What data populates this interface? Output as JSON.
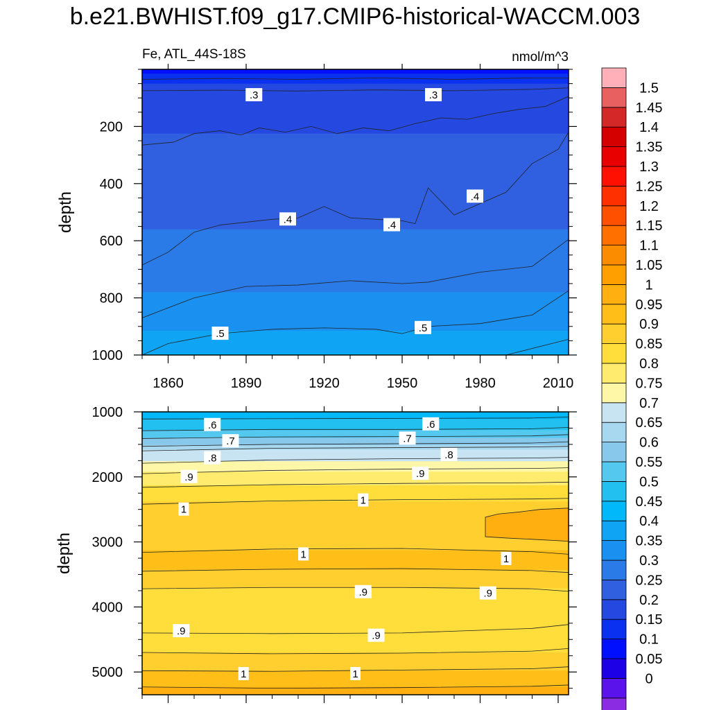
{
  "figure": {
    "title": "b.e21.BWHIST.f09_g17.CMIP6-historical-WACCM.003",
    "variable_label": "Fe, ATL_44S-18S",
    "units": "nmol/m^3"
  },
  "chart_data": [
    {
      "type": "heatmap",
      "panel": "upper",
      "variable": "Fe",
      "region": "ATL_44S-18S",
      "units": "nmol/m^3",
      "xlabel": "",
      "ylabel": "depth",
      "xlim": [
        1850,
        2014
      ],
      "ylim": [
        1000,
        0
      ],
      "xticks": [
        1860,
        1890,
        1920,
        1950,
        1980,
        2010
      ],
      "yticks": [
        200,
        400,
        600,
        800,
        1000
      ],
      "contour_interval": 0.05,
      "contour_labels": [
        {
          "text": ".3",
          "x": 1893,
          "y": 90
        },
        {
          "text": ".3",
          "x": 1962,
          "y": 90
        },
        {
          "text": ".4",
          "x": 1906,
          "y": 525
        },
        {
          "text": ".4",
          "x": 1946,
          "y": 545
        },
        {
          "text": ".4",
          "x": 1978,
          "y": 445
        },
        {
          "text": ".5",
          "x": 1880,
          "y": 925
        },
        {
          "text": ".5",
          "x": 1958,
          "y": 905
        }
      ],
      "isolines": [
        {
          "level": 0.2,
          "x": [
            1850,
            1880,
            1910,
            1940,
            1970,
            2000,
            2014
          ],
          "y": [
            35,
            32,
            35,
            30,
            35,
            30,
            30
          ]
        },
        {
          "level": 0.25,
          "x": [
            1850,
            1880,
            1910,
            1940,
            1970,
            2000,
            2014
          ],
          "y": [
            75,
            73,
            76,
            72,
            75,
            70,
            65
          ]
        },
        {
          "level": 0.3,
          "x": [
            1850,
            1862,
            1870,
            1880,
            1888,
            1895,
            1905,
            1915,
            1925,
            1935,
            1945,
            1955,
            1965,
            1975,
            1985,
            1995,
            2005,
            2014
          ],
          "y": [
            265,
            255,
            225,
            215,
            230,
            205,
            220,
            200,
            225,
            205,
            215,
            190,
            170,
            175,
            155,
            140,
            130,
            95
          ]
        },
        {
          "level": 0.35,
          "x": [
            1850,
            1860,
            1870,
            1880,
            1890,
            1900,
            1910,
            1920,
            1930,
            1940,
            1950,
            1955,
            1960,
            1970,
            1980,
            1990,
            2000,
            2010,
            2014
          ],
          "y": [
            685,
            640,
            570,
            545,
            535,
            525,
            520,
            480,
            520,
            525,
            530,
            540,
            415,
            510,
            470,
            430,
            330,
            280,
            220
          ]
        },
        {
          "level": 0.4,
          "x": [
            1850,
            1870,
            1890,
            1910,
            1930,
            1950,
            1960,
            1980,
            2000,
            2014
          ],
          "y": [
            870,
            800,
            760,
            755,
            740,
            750,
            745,
            710,
            690,
            595
          ]
        },
        {
          "level": 0.45,
          "x": [
            1850,
            1860,
            1880,
            1900,
            1920,
            1940,
            1950,
            1960,
            1980,
            2000,
            2014
          ],
          "y": [
            1000,
            960,
            925,
            910,
            905,
            910,
            925,
            900,
            890,
            860,
            775
          ]
        },
        {
          "level": 0.5,
          "x": [
            1990,
            2014
          ],
          "y": [
            1000,
            945
          ]
        }
      ],
      "levels": [
        {
          "top": 0,
          "value": 0.15
        },
        {
          "top": 15,
          "value": 0.2
        },
        {
          "top": 50,
          "value": 0.25
        },
        {
          "top": 225,
          "value": 0.3
        },
        {
          "top": 560,
          "value": 0.35
        },
        {
          "top": 780,
          "value": 0.4
        },
        {
          "top": 915,
          "value": 0.45
        },
        {
          "top": 995,
          "value": 0.5
        }
      ]
    },
    {
      "type": "heatmap",
      "panel": "lower",
      "variable": "Fe",
      "region": "ATL_44S-18S",
      "units": "nmol/m^3",
      "xlabel": "",
      "ylabel": "depth",
      "xlim": [
        1850,
        2014
      ],
      "ylim": [
        5350,
        1000
      ],
      "xticks": [
        1860,
        1890,
        1920,
        1950,
        1980,
        2010
      ],
      "yticks": [
        1000,
        2000,
        3000,
        4000,
        5000
      ],
      "contour_interval": 0.05,
      "contour_labels": [
        {
          "text": ".6",
          "x": 1877,
          "y": 1200
        },
        {
          "text": ".6",
          "x": 1961,
          "y": 1190
        },
        {
          "text": ".7",
          "x": 1884,
          "y": 1450
        },
        {
          "text": ".7",
          "x": 1952,
          "y": 1410
        },
        {
          "text": ".8",
          "x": 1877,
          "y": 1710
        },
        {
          "text": ".8",
          "x": 1968,
          "y": 1660
        },
        {
          "text": ".9",
          "x": 1868,
          "y": 2000
        },
        {
          "text": ".9",
          "x": 1957,
          "y": 1950
        },
        {
          "text": "1",
          "x": 1866,
          "y": 2500
        },
        {
          "text": "1",
          "x": 1935,
          "y": 2360
        },
        {
          "text": "1",
          "x": 1912,
          "y": 3190
        },
        {
          "text": "1",
          "x": 1990,
          "y": 3260
        },
        {
          "text": ".9",
          "x": 1935,
          "y": 3770
        },
        {
          "text": ".9",
          "x": 1983,
          "y": 3790
        },
        {
          "text": ".9",
          "x": 1865,
          "y": 4370
        },
        {
          "text": ".9",
          "x": 1940,
          "y": 4440
        },
        {
          "text": "1",
          "x": 1889,
          "y": 5030
        },
        {
          "text": "1",
          "x": 1932,
          "y": 5030
        }
      ],
      "isolines": [
        {
          "level": 0.55,
          "x": [
            1850,
            1900,
            1950,
            2000,
            2014
          ],
          "y": [
            1110,
            1105,
            1100,
            1095,
            1080
          ]
        },
        {
          "level": 0.6,
          "x": [
            1850,
            1900,
            1950,
            2000,
            2014
          ],
          "y": [
            1290,
            1270,
            1270,
            1260,
            1240
          ]
        },
        {
          "level": 0.65,
          "x": [
            1850,
            1900,
            1950,
            2000,
            2014
          ],
          "y": [
            1410,
            1385,
            1380,
            1370,
            1350
          ]
        },
        {
          "level": 0.7,
          "x": [
            1850,
            1900,
            1950,
            2000,
            2014
          ],
          "y": [
            1530,
            1500,
            1490,
            1480,
            1460
          ]
        },
        {
          "level": 0.75,
          "x": [
            1850,
            1900,
            1950,
            2000,
            2014
          ],
          "y": [
            1600,
            1560,
            1550,
            1540,
            1530
          ]
        },
        {
          "level": 0.8,
          "x": [
            1850,
            1900,
            1950,
            2000,
            2014
          ],
          "y": [
            1790,
            1740,
            1720,
            1710,
            1700
          ]
        },
        {
          "level": 0.85,
          "x": [
            1850,
            1900,
            1950,
            2000,
            2014
          ],
          "y": [
            1950,
            1900,
            1880,
            1870,
            1860
          ]
        },
        {
          "level": 0.9,
          "x": [
            1850,
            1900,
            1950,
            2000,
            2014
          ],
          "y": [
            2160,
            2120,
            2100,
            2090,
            2080
          ]
        },
        {
          "level": 0.95,
          "x": [
            1850,
            1900,
            1950,
            2000,
            2014
          ],
          "y": [
            2420,
            2370,
            2350,
            2340,
            2330
          ]
        },
        {
          "level": 1.0,
          "x": [
            1850,
            1900,
            1950,
            2000,
            2014
          ],
          "y": [
            3160,
            3110,
            3100,
            3150,
            3190
          ]
        },
        {
          "level": 0.95,
          "x": [
            1850,
            1900,
            1950,
            2000,
            2014
          ],
          "y": [
            3450,
            3420,
            3410,
            3440,
            3470
          ]
        },
        {
          "level": 0.9,
          "x": [
            1850,
            1900,
            1950,
            2000,
            2014
          ],
          "y": [
            3720,
            3700,
            3700,
            3720,
            3760
          ]
        },
        {
          "level": 0.9,
          "x": [
            1850,
            1900,
            1950,
            2000,
            2014
          ],
          "y": [
            4400,
            4410,
            4400,
            4330,
            4270
          ]
        },
        {
          "level": 0.95,
          "x": [
            1850,
            1900,
            1950,
            2000,
            2014
          ],
          "y": [
            4700,
            4720,
            4710,
            4680,
            4640
          ]
        },
        {
          "level": 1.0,
          "x": [
            1850,
            1900,
            1950,
            2000,
            2014
          ],
          "y": [
            4980,
            4990,
            4970,
            4950,
            4920
          ]
        },
        {
          "level": 1.05,
          "x": [
            1850,
            1900,
            1950,
            2000,
            2014
          ],
          "y": [
            5230,
            5250,
            5240,
            5220,
            5200
          ]
        }
      ],
      "patches": [
        {
          "value": 1.05,
          "x": [
            1982,
            1987,
            1995,
            2003,
            2014,
            2014,
            2000,
            1990,
            1982
          ],
          "y": [
            2620,
            2570,
            2540,
            2500,
            2480,
            2990,
            2960,
            2940,
            2920
          ]
        }
      ],
      "levels": [
        {
          "top": 1000,
          "value": 0.5
        },
        {
          "top": 1110,
          "value": 0.55
        },
        {
          "top": 1280,
          "value": 0.6
        },
        {
          "top": 1400,
          "value": 0.65
        },
        {
          "top": 1510,
          "value": 0.7
        },
        {
          "top": 1580,
          "value": 0.75
        },
        {
          "top": 1760,
          "value": 0.8
        },
        {
          "top": 1920,
          "value": 0.85
        },
        {
          "top": 2130,
          "value": 0.9
        },
        {
          "top": 2380,
          "value": 0.95
        },
        {
          "top": 3130,
          "value": 1.0
        },
        {
          "top": 3430,
          "value": 0.95
        },
        {
          "top": 3710,
          "value": 0.9
        },
        {
          "top": 4400,
          "value": 0.9
        },
        {
          "top": 4700,
          "value": 0.95
        },
        {
          "top": 4980,
          "value": 1.0
        },
        {
          "top": 5230,
          "value": 1.05
        }
      ]
    }
  ],
  "colorbar": {
    "min": 0,
    "max": 1.55,
    "step": 0.05,
    "labels": [
      "1.5",
      "1.45",
      "1.4",
      "1.35",
      "1.3",
      "1.25",
      "1.2",
      "1.15",
      "1.1",
      "1.05",
      "1",
      "0.95",
      "0.9",
      "0.85",
      "0.8",
      "0.75",
      "0.7",
      "0.65",
      "0.6",
      "0.55",
      "0.5",
      "0.45",
      "0.4",
      "0.35",
      "0.3",
      "0.25",
      "0.2",
      "0.15",
      "0.1",
      "0.05",
      "0"
    ],
    "colors": [
      "#8b2be2",
      "#5a14eb",
      "#1e00e6",
      "#0010ff",
      "#0a30f0",
      "#2448e0",
      "#3060e0",
      "#2a7ae8",
      "#1a90f0",
      "#10a4f5",
      "#00b8fa",
      "#22c0f0",
      "#55c8f0",
      "#88c8ea",
      "#a8d8ef",
      "#c8e4f2",
      "#fff7a8",
      "#ffec6e",
      "#ffde3c",
      "#ffcf30",
      "#ffbe18",
      "#ffb010",
      "#ffa000",
      "#fb8c00",
      "#ff7000",
      "#ff5000",
      "#ff3000",
      "#ff1000",
      "#e80000",
      "#d40000",
      "#d42828",
      "#e86060",
      "#ffb0b8"
    ]
  }
}
